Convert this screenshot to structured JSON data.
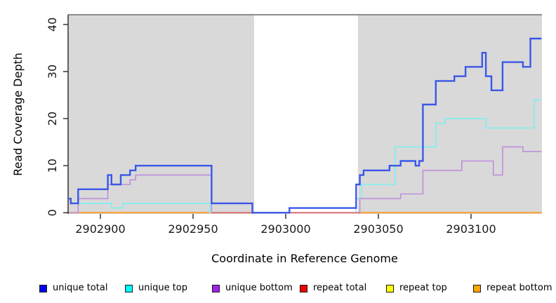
{
  "figure": {
    "kind": "read coverage step plot"
  },
  "chart_data": {
    "type": "line",
    "title": "",
    "xlabel": "Coordinate in Reference Genome",
    "ylabel": "Read Coverage Depth",
    "x_range": [
      2902883,
      2903138
    ],
    "y_range": [
      0,
      42
    ],
    "x_ticks": [
      2902900,
      2902950,
      2903000,
      2903050,
      2903100
    ],
    "y_ticks": [
      0,
      10,
      20,
      30,
      40
    ],
    "grid": "off",
    "plot_background": "#D9D9D9",
    "mask_region": {
      "start": 2902983,
      "end": 2903039,
      "color": "#FFFFFF"
    },
    "draw_order": [
      "repeat top",
      "repeat bottom",
      "unique top",
      "unique bottom",
      "repeat total",
      "unique total"
    ],
    "series": [
      {
        "name": "unique total",
        "line_color": "#3A57E8",
        "width": 2.4,
        "steps": [
          [
            2902883,
            3
          ],
          [
            2902884,
            2
          ],
          [
            2902888,
            5
          ],
          [
            2902904,
            8
          ],
          [
            2902906,
            6
          ],
          [
            2902911,
            8
          ],
          [
            2902916,
            9
          ],
          [
            2902919,
            10
          ],
          [
            2902960,
            2
          ],
          [
            2902982,
            0
          ],
          [
            2903002,
            1
          ],
          [
            2903038,
            6
          ],
          [
            2903040,
            8
          ],
          [
            2903042,
            9
          ],
          [
            2903056,
            10
          ],
          [
            2903062,
            11
          ],
          [
            2903070,
            10
          ],
          [
            2903072,
            11
          ],
          [
            2903074,
            23
          ],
          [
            2903081,
            28
          ],
          [
            2903091,
            29
          ],
          [
            2903097,
            31
          ],
          [
            2903106,
            34
          ],
          [
            2903108,
            29
          ],
          [
            2903111,
            26
          ],
          [
            2903117,
            32
          ],
          [
            2903128,
            31
          ],
          [
            2903132,
            37
          ]
        ]
      },
      {
        "name": "unique top",
        "line_color": "#7DEFF2",
        "width": 1.6,
        "steps": [
          [
            2902883,
            0
          ],
          [
            2902888,
            2
          ],
          [
            2902906,
            1
          ],
          [
            2902912,
            2
          ],
          [
            2902959,
            0
          ],
          [
            2903038,
            3
          ],
          [
            2903041,
            6
          ],
          [
            2903059,
            14
          ],
          [
            2903081,
            19
          ],
          [
            2903086,
            20
          ],
          [
            2903108,
            18
          ],
          [
            2903134,
            24
          ]
        ]
      },
      {
        "name": "unique bottom",
        "line_color": "#BE8EDC",
        "width": 1.6,
        "steps": [
          [
            2902883,
            0
          ],
          [
            2902888,
            3
          ],
          [
            2902904,
            6
          ],
          [
            2902916,
            7
          ],
          [
            2902919,
            8
          ],
          [
            2902960,
            0
          ],
          [
            2903040,
            3
          ],
          [
            2903062,
            4
          ],
          [
            2903074,
            9
          ],
          [
            2903095,
            11
          ],
          [
            2903112,
            8
          ],
          [
            2903117,
            14
          ],
          [
            2903128,
            13
          ]
        ]
      },
      {
        "name": "repeat total",
        "line_color": "#D5697F",
        "width": 1.6,
        "steps": [
          [
            2902960,
            0
          ]
        ],
        "end": 2903040
      },
      {
        "name": "repeat top",
        "line_color": "#F2EE55",
        "width": 1.6,
        "steps": [
          [
            2902883,
            0
          ]
        ]
      },
      {
        "name": "repeat bottom",
        "line_color": "#FF9D32",
        "width": 2,
        "steps": [
          [
            2902883,
            0
          ]
        ]
      }
    ]
  },
  "legend": {
    "items": [
      {
        "label": "unique total",
        "color": "#0000EE"
      },
      {
        "label": "unique top",
        "color": "#00FFFF"
      },
      {
        "label": "unique bottom",
        "color": "#A020F0"
      },
      {
        "label": "repeat total",
        "color": "#EE0000"
      },
      {
        "label": "repeat top",
        "color": "#FFFF00"
      },
      {
        "label": "repeat bottom",
        "color": "#FFA500"
      }
    ]
  }
}
